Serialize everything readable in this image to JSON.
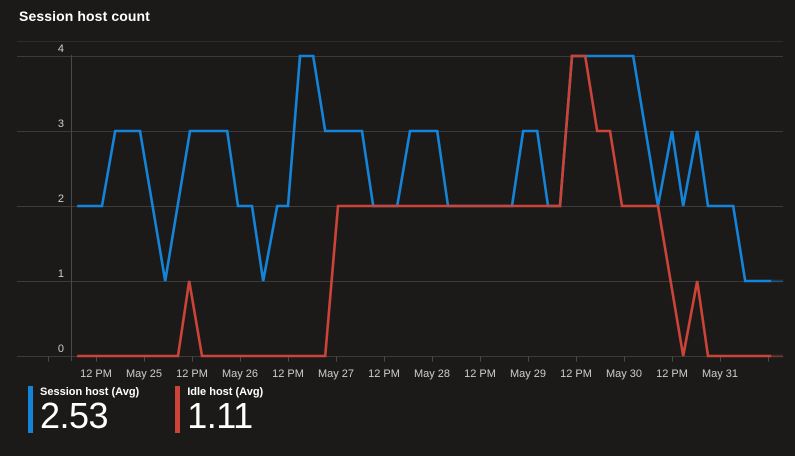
{
  "title": "Session host count",
  "legend": {
    "items": [
      {
        "label": "Session host (Avg)",
        "value": "2.53",
        "color": "#1584d8"
      },
      {
        "label": "Idle host (Avg)",
        "value": "1.11",
        "color": "#cc4438"
      }
    ]
  },
  "colors": {
    "background": "#1b1a19",
    "gridline": "#3b3b3b",
    "plot_top_border": "#2e2d2c",
    "axis_line": "#4a4a4a",
    "tick_text": "#cfcdcb",
    "title_text": "#ffffff"
  },
  "chart_data": {
    "type": "line",
    "title": "Session host count",
    "xlabel": "",
    "ylabel": "",
    "ylim": [
      0,
      4
    ],
    "y_ticks": [
      0,
      1,
      2,
      3,
      4
    ],
    "grid": "horizontal",
    "legend_position": "bottom-left",
    "x_unit": "hours from start of axis (midnight before May 25)",
    "x_axis_span_hours": [
      0,
      180
    ],
    "x_ticks": [
      {
        "t": 12,
        "label": "12 PM"
      },
      {
        "t": 24,
        "label": "May 25"
      },
      {
        "t": 36,
        "label": "12 PM"
      },
      {
        "t": 48,
        "label": "May 26"
      },
      {
        "t": 60,
        "label": "12 PM"
      },
      {
        "t": 72,
        "label": "May 27"
      },
      {
        "t": 84,
        "label": "12 PM"
      },
      {
        "t": 96,
        "label": "May 28"
      },
      {
        "t": 108,
        "label": "12 PM"
      },
      {
        "t": 120,
        "label": "May 29"
      },
      {
        "t": 132,
        "label": "12 PM"
      },
      {
        "t": 144,
        "label": "May 30"
      },
      {
        "t": 156,
        "label": "12 PM"
      },
      {
        "t": 168,
        "label": "May 31"
      }
    ],
    "series": [
      {
        "name": "Session host (Avg)",
        "avg": 2.53,
        "color": "#1584d8",
        "points": [
          [
            7.3,
            2
          ],
          [
            13.5,
            2
          ],
          [
            16.8,
            3
          ],
          [
            23,
            3
          ],
          [
            29.3,
            1
          ],
          [
            35.5,
            3
          ],
          [
            44.8,
            3
          ],
          [
            47.5,
            2
          ],
          [
            51,
            2
          ],
          [
            53.8,
            1
          ],
          [
            57.3,
            2
          ],
          [
            60,
            2
          ],
          [
            63,
            4
          ],
          [
            66.3,
            4
          ],
          [
            69.3,
            3
          ],
          [
            78.5,
            3
          ],
          [
            81.3,
            2
          ],
          [
            87.3,
            2
          ],
          [
            90.5,
            3
          ],
          [
            97.3,
            3
          ],
          [
            100,
            2
          ],
          [
            116,
            2
          ],
          [
            118.8,
            3
          ],
          [
            122.3,
            3
          ],
          [
            125,
            2
          ],
          [
            128,
            2
          ],
          [
            131,
            4
          ],
          [
            146.3,
            4
          ],
          [
            152.5,
            2
          ],
          [
            156,
            3
          ],
          [
            158.8,
            2
          ],
          [
            162.3,
            3
          ],
          [
            165,
            2
          ],
          [
            171.3,
            2
          ],
          [
            174.3,
            1
          ],
          [
            180.8,
            1
          ]
        ]
      },
      {
        "name": "Idle host (Avg)",
        "avg": 1.11,
        "color": "#cc4438",
        "points": [
          [
            7.3,
            0
          ],
          [
            32.5,
            0
          ],
          [
            35.3,
            1
          ],
          [
            38.5,
            0
          ],
          [
            69.3,
            0
          ],
          [
            72.5,
            2
          ],
          [
            128,
            2
          ],
          [
            131,
            4
          ],
          [
            134.3,
            4
          ],
          [
            137.3,
            3
          ],
          [
            140.5,
            3
          ],
          [
            143.5,
            2
          ],
          [
            152.5,
            2
          ],
          [
            158.8,
            0
          ],
          [
            162.3,
            1
          ],
          [
            165,
            0
          ],
          [
            180.8,
            0
          ]
        ]
      }
    ],
    "faded_tail_end_hour": 183.8
  }
}
